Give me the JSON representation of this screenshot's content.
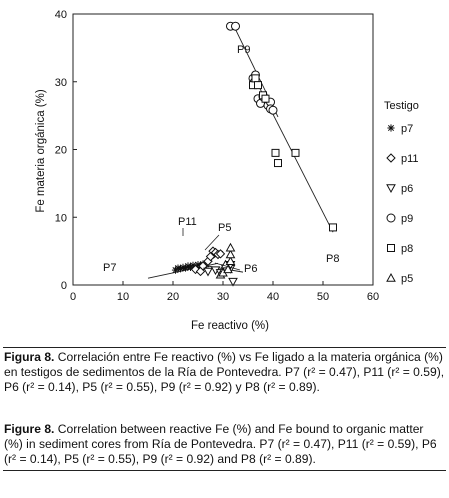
{
  "chart_data": {
    "type": "scatter",
    "xlabel": "Fe  reactivo (%)",
    "ylabel": "Fe  materia orgánica (%)",
    "xlim": [
      0,
      60
    ],
    "ylim": [
      0,
      40
    ],
    "xticks": [
      0,
      10,
      20,
      30,
      40,
      50,
      60
    ],
    "yticks": [
      0,
      10,
      20,
      30,
      40
    ],
    "grid": false,
    "legend_title": "Testigo",
    "legend_position": "right",
    "series": [
      {
        "name": "p7",
        "marker": "asterisk",
        "points": [
          [
            20.5,
            2.2
          ],
          [
            21,
            2.5
          ],
          [
            21.5,
            2.4
          ],
          [
            22,
            2.6
          ],
          [
            22.5,
            2.5
          ],
          [
            23,
            2.8
          ],
          [
            23.5,
            2.6
          ],
          [
            24,
            2.9
          ],
          [
            24.5,
            2.5
          ],
          [
            25,
            3.0
          ],
          [
            25.5,
            2.8
          ],
          [
            26,
            3.1
          ],
          [
            26.5,
            2.7
          ]
        ],
        "fit": [
          [
            15,
            1.0
          ],
          [
            29,
            3.2
          ]
        ],
        "fit_label": "P7"
      },
      {
        "name": "p11",
        "marker": "diamond",
        "points": [
          [
            24.5,
            2.3
          ],
          [
            25.5,
            2.0
          ],
          [
            26,
            2.8
          ],
          [
            27,
            3.5
          ],
          [
            27.5,
            4.2
          ],
          [
            28,
            5.0
          ],
          [
            28.5,
            4.8
          ],
          [
            29,
            4.5
          ],
          [
            29.5,
            4.6
          ]
        ],
        "fit": [
          [
            25,
            2.3
          ],
          [
            30,
            5.0
          ]
        ],
        "fit_label": "P11"
      },
      {
        "name": "p6",
        "marker": "triangle-down",
        "points": [
          [
            27,
            2.0
          ],
          [
            28.5,
            2.2
          ],
          [
            29.5,
            1.8
          ],
          [
            30.5,
            2.5
          ],
          [
            31.5,
            2.4
          ],
          [
            31.5,
            3.0
          ],
          [
            32,
            0.5
          ]
        ],
        "fit": [
          [
            27,
            2.8
          ],
          [
            34,
            1.9
          ]
        ],
        "fit_label": "P6"
      },
      {
        "name": "p9",
        "marker": "circle",
        "points": [
          [
            31.5,
            38.2
          ],
          [
            32.5,
            38.2
          ],
          [
            36,
            30.5
          ],
          [
            36.3,
            30.0
          ],
          [
            36.5,
            31.0
          ],
          [
            37,
            27.5
          ],
          [
            37.5,
            26.8
          ],
          [
            38,
            27.8
          ],
          [
            39,
            26.5
          ],
          [
            39.5,
            27.0
          ],
          [
            39.5,
            26.0
          ],
          [
            40,
            25.8
          ]
        ],
        "fit": [
          [
            32,
            38.5
          ],
          [
            41,
            24.8
          ]
        ],
        "fit_label": "P9"
      },
      {
        "name": "p8",
        "marker": "square",
        "points": [
          [
            36,
            29.5
          ],
          [
            36.5,
            30.5
          ],
          [
            37,
            29.5
          ],
          [
            38,
            28.0
          ],
          [
            38.5,
            27.5
          ],
          [
            40.5,
            19.5
          ],
          [
            41,
            18.0
          ],
          [
            44.5,
            19.5
          ],
          [
            52,
            8.5
          ]
        ],
        "fit": [
          [
            36,
            31.0
          ],
          [
            52,
            7.8
          ]
        ],
        "fit_label": "P8"
      },
      {
        "name": "p5",
        "marker": "triangle-up",
        "points": [
          [
            29.5,
            1.5
          ],
          [
            30,
            1.8
          ],
          [
            30.5,
            3.0
          ],
          [
            31,
            2.3
          ],
          [
            31.5,
            3.5
          ],
          [
            31.5,
            4.5
          ],
          [
            31.5,
            5.5
          ]
        ],
        "fit": [
          [
            29.5,
            1.5
          ],
          [
            32,
            4.5
          ]
        ],
        "fit_label": "P5"
      }
    ]
  },
  "caption_es": {
    "label": "Figura 8.",
    "text": " Correlación entre Fe reactivo (%) vs Fe ligado a la materia orgánica (%) en testigos de sedimentos de la Ría de Pontevedra. P7 (r² = 0.47), P11 (r² = 0.59), P6 (r² = 0.14), P5 (r² = 0.55), P9 (r² = 0.92) y P8 (r² = 0.89)."
  },
  "caption_en": {
    "label": "Figure 8.",
    "text": " Correlation between reactive Fe (%) and Fe bound to organic matter (%) in sediment cores from Ría de Pontevedra. P7 (r² = 0.47), P11 (r² = 0.59), P6 (r² = 0.14), P5 (r² = 0.55), P9 (r² = 0.92) and P8 (r² = 0.89)."
  }
}
